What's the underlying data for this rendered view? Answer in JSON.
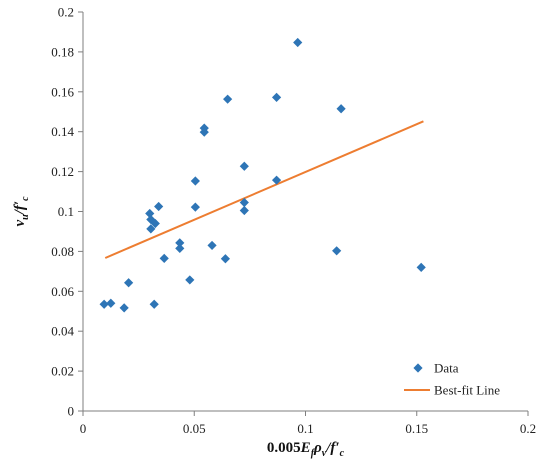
{
  "chart_data": {
    "type": "scatter",
    "xlabel": "0.005E_f ρ_v / f'_c",
    "ylabel": "v_u / f'_c",
    "xlim": [
      0,
      0.2
    ],
    "ylim": [
      0,
      0.2
    ],
    "x_ticks": [
      "0",
      "0.05",
      "0.1",
      "0.15",
      "0.2"
    ],
    "y_ticks": [
      "0",
      "0.02",
      "0.04",
      "0.06",
      "0.08",
      "0.1",
      "0.12",
      "0.14",
      "0.16",
      "0.18",
      "0.2"
    ],
    "x_tick_values": [
      0,
      0.05,
      0.1,
      0.15,
      0.2
    ],
    "y_tick_values": [
      0,
      0.02,
      0.04,
      0.06,
      0.08,
      0.1,
      0.12,
      0.14,
      0.16,
      0.18,
      0.2
    ],
    "grid": false,
    "legend_position": "bottom-right",
    "series": [
      {
        "name": "Data",
        "kind": "scatter",
        "marker": "diamond",
        "color": "#2e75b6",
        "points": [
          [
            0.0095,
            0.0535
          ],
          [
            0.0125,
            0.054
          ],
          [
            0.0185,
            0.0517
          ],
          [
            0.0205,
            0.0643
          ],
          [
            0.03,
            0.099
          ],
          [
            0.0305,
            0.096
          ],
          [
            0.0305,
            0.0913
          ],
          [
            0.0325,
            0.094
          ],
          [
            0.034,
            0.1025
          ],
          [
            0.032,
            0.0535
          ],
          [
            0.0365,
            0.0765
          ],
          [
            0.0435,
            0.0843
          ],
          [
            0.0435,
            0.0815
          ],
          [
            0.048,
            0.0657
          ],
          [
            0.0505,
            0.1153
          ],
          [
            0.0505,
            0.1022
          ],
          [
            0.0545,
            0.1418
          ],
          [
            0.0545,
            0.1398
          ],
          [
            0.058,
            0.083
          ],
          [
            0.064,
            0.0763
          ],
          [
            0.065,
            0.1563
          ],
          [
            0.0725,
            0.1227
          ],
          [
            0.0725,
            0.1045
          ],
          [
            0.0725,
            0.1005
          ],
          [
            0.087,
            0.1572
          ],
          [
            0.087,
            0.1157
          ],
          [
            0.0965,
            0.1847
          ],
          [
            0.114,
            0.0803
          ],
          [
            0.116,
            0.1515
          ],
          [
            0.152,
            0.072
          ]
        ]
      },
      {
        "name": "Best-fit Line",
        "kind": "line",
        "color": "#ed7d31",
        "points": [
          [
            0.01,
            0.0767
          ],
          [
            0.153,
            0.1452
          ]
        ]
      }
    ]
  }
}
